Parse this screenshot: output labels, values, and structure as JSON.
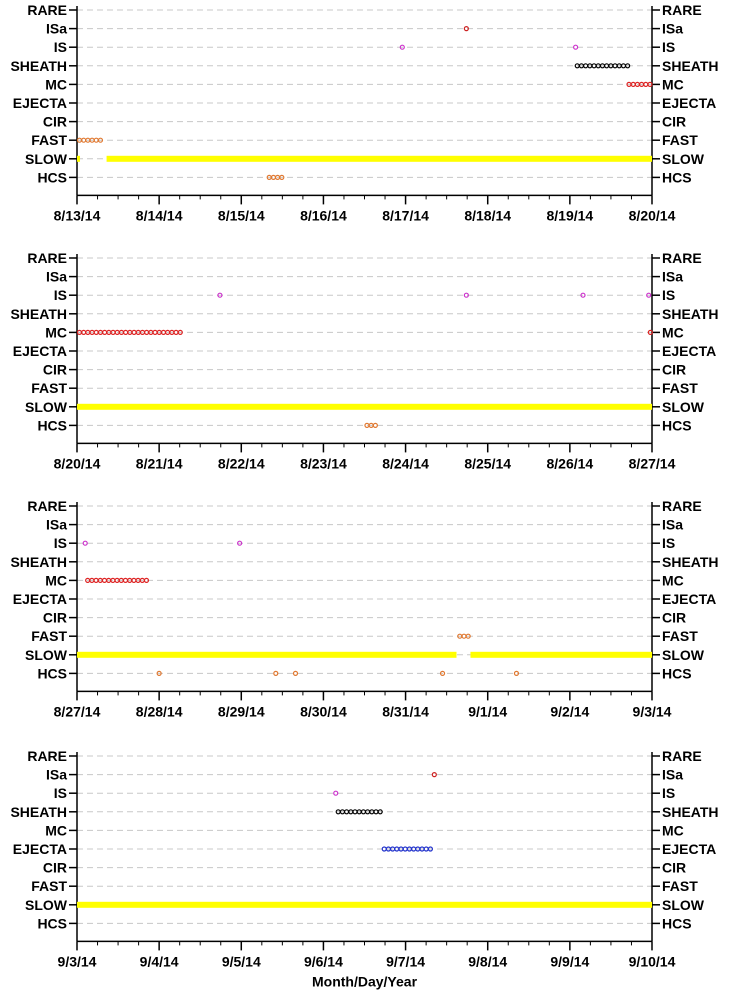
{
  "chart_data": [
    {
      "type": "scatter",
      "categories": [
        "RARE",
        "ISa",
        "IS",
        "SHEATH",
        "MC",
        "EJECTA",
        "CIR",
        "FAST",
        "SLOW",
        "HCS"
      ],
      "x_ticks": [
        "8/13/14",
        "8/14/14",
        "8/15/14",
        "8/16/14",
        "8/17/14",
        "8/18/14",
        "8/19/14",
        "8/20/14"
      ],
      "xlim_days": [
        0,
        7.0
      ],
      "grid": "dashed horizontal",
      "series": [
        {
          "category": "SLOW",
          "color": "#ffff00",
          "filled": true,
          "segments": [
            [
              0,
              0.02
            ],
            [
              0.36,
              7.0
            ]
          ]
        },
        {
          "category": "FAST",
          "color": "#e07830",
          "filled": false,
          "segments": [
            [
              0.03,
              0.33
            ]
          ]
        },
        {
          "category": "HCS",
          "color": "#e07830",
          "filled": false,
          "segments": [
            [
              2.34,
              2.54
            ]
          ]
        },
        {
          "category": "IS",
          "color": "#cc33cc",
          "filled": false,
          "segments": [
            [
              3.96,
              3.96
            ],
            [
              6.07,
              6.07
            ]
          ]
        },
        {
          "category": "ISa",
          "color": "#cc2222",
          "filled": false,
          "segments": [
            [
              4.74,
              4.74
            ]
          ]
        },
        {
          "category": "SHEATH",
          "color": "#000000",
          "filled": false,
          "segments": [
            [
              6.09,
              6.72
            ]
          ]
        },
        {
          "category": "MC",
          "color": "#dd2222",
          "filled": false,
          "segments": [
            [
              6.72,
              7.0
            ]
          ]
        }
      ]
    },
    {
      "type": "scatter",
      "categories": [
        "RARE",
        "ISa",
        "IS",
        "SHEATH",
        "MC",
        "EJECTA",
        "CIR",
        "FAST",
        "SLOW",
        "HCS"
      ],
      "x_ticks": [
        "8/20/14",
        "8/21/14",
        "8/22/14",
        "8/23/14",
        "8/24/14",
        "8/25/14",
        "8/26/14",
        "8/27/14"
      ],
      "xlim_days": [
        0,
        7.0
      ],
      "grid": "dashed horizontal",
      "series": [
        {
          "category": "SLOW",
          "color": "#ffff00",
          "filled": true,
          "segments": [
            [
              0,
              7.0
            ]
          ]
        },
        {
          "category": "MC",
          "color": "#dd2222",
          "filled": false,
          "segments": [
            [
              0.03,
              1.26
            ],
            [
              6.98,
              7.0
            ]
          ]
        },
        {
          "category": "IS",
          "color": "#cc33cc",
          "filled": false,
          "segments": [
            [
              1.74,
              1.74
            ],
            [
              4.74,
              4.74
            ],
            [
              6.16,
              6.16
            ],
            [
              6.96,
              6.96
            ]
          ]
        },
        {
          "category": "HCS",
          "color": "#e07830",
          "filled": false,
          "segments": [
            [
              3.53,
              3.68
            ]
          ]
        }
      ]
    },
    {
      "type": "scatter",
      "categories": [
        "RARE",
        "ISa",
        "IS",
        "SHEATH",
        "MC",
        "EJECTA",
        "CIR",
        "FAST",
        "SLOW",
        "HCS"
      ],
      "x_ticks": [
        "8/27/14",
        "8/28/14",
        "8/29/14",
        "8/30/14",
        "8/31/14",
        "9/1/14",
        "9/2/14",
        "9/3/14"
      ],
      "xlim_days": [
        0,
        7.0
      ],
      "grid": "dashed horizontal",
      "series": [
        {
          "category": "SLOW",
          "color": "#ffff00",
          "filled": true,
          "segments": [
            [
              0,
              4.62
            ],
            [
              4.79,
              7.0
            ]
          ]
        },
        {
          "category": "IS",
          "color": "#cc33cc",
          "filled": false,
          "segments": [
            [
              0.1,
              0.1
            ],
            [
              1.98,
              1.98
            ]
          ]
        },
        {
          "category": "MC",
          "color": "#dd2222",
          "filled": false,
          "segments": [
            [
              0.13,
              0.88
            ]
          ]
        },
        {
          "category": "FAST",
          "color": "#e07830",
          "filled": false,
          "segments": [
            [
              4.66,
              4.8
            ]
          ]
        },
        {
          "category": "HCS",
          "color": "#e07830",
          "filled": false,
          "segments": [
            [
              1.0,
              1.04
            ],
            [
              2.42,
              2.42
            ],
            [
              2.66,
              2.66
            ],
            [
              4.45,
              4.5
            ],
            [
              5.35,
              5.4
            ]
          ]
        }
      ]
    },
    {
      "type": "scatter",
      "categories": [
        "RARE",
        "ISa",
        "IS",
        "SHEATH",
        "MC",
        "EJECTA",
        "CIR",
        "FAST",
        "SLOW",
        "HCS"
      ],
      "x_ticks": [
        "9/3/14",
        "9/4/14",
        "9/5/14",
        "9/6/14",
        "9/7/14",
        "9/8/14",
        "9/9/14",
        "9/10/14"
      ],
      "xlim_days": [
        0,
        7.0
      ],
      "xlabel": "Month/Day/Year",
      "grid": "dashed horizontal",
      "series": [
        {
          "category": "SLOW",
          "color": "#ffff00",
          "filled": true,
          "segments": [
            [
              0,
              7.0
            ]
          ]
        },
        {
          "category": "IS",
          "color": "#cc33cc",
          "filled": false,
          "segments": [
            [
              3.15,
              3.15
            ]
          ]
        },
        {
          "category": "SHEATH",
          "color": "#000000",
          "filled": false,
          "segments": [
            [
              3.18,
              3.73
            ]
          ]
        },
        {
          "category": "ISa",
          "color": "#cc2222",
          "filled": false,
          "segments": [
            [
              4.35,
              4.35
            ]
          ]
        },
        {
          "category": "EJECTA",
          "color": "#2233cc",
          "filled": false,
          "segments": [
            [
              3.74,
              4.32
            ]
          ]
        }
      ]
    }
  ]
}
